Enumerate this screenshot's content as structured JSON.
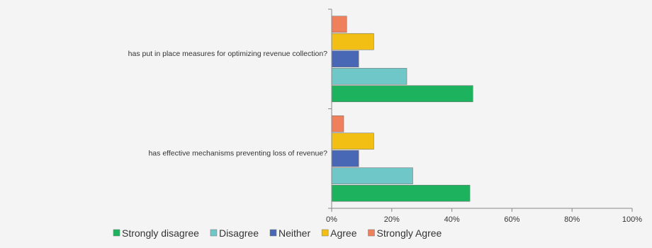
{
  "chart_data": {
    "type": "bar",
    "orientation": "horizontal",
    "title": "",
    "xlabel": "",
    "ylabel": "",
    "xlim": [
      0,
      100
    ],
    "tick_values": [
      0,
      20,
      40,
      60,
      80,
      100
    ],
    "tick_labels": [
      "0%",
      "20%",
      "40%",
      "60%",
      "80%",
      "100%"
    ],
    "grid": false,
    "legend_position": "bottom",
    "categories": [
      "has put in place measures for optimizing revenue collection?",
      "has effective mechanisms preventing loss of revenue?"
    ],
    "series": [
      {
        "name": "Strongly disagree",
        "color": "#1db35e",
        "values": [
          47,
          46
        ]
      },
      {
        "name": "Disagree",
        "color": "#6fc7c8",
        "values": [
          25,
          27
        ]
      },
      {
        "name": "Neither",
        "color": "#4867b5",
        "values": [
          9,
          9
        ]
      },
      {
        "name": "Agree",
        "color": "#f2c014",
        "values": [
          14,
          14
        ]
      },
      {
        "name": "Strongly Agree",
        "color": "#f0805c",
        "values": [
          5,
          4
        ]
      }
    ]
  }
}
